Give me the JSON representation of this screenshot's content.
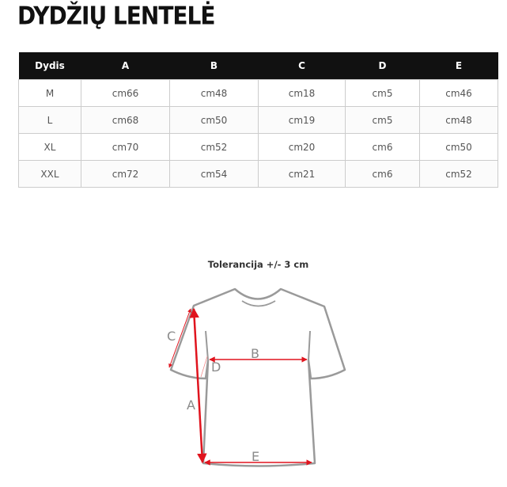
{
  "title": "DYDŽIŲ LENTELĖ",
  "table": {
    "headers": [
      "Dydis",
      "A",
      "B",
      "C",
      "D",
      "E"
    ],
    "rows": [
      [
        "M",
        "cm66",
        "cm48",
        "cm18",
        "cm5",
        "cm46"
      ],
      [
        "L",
        "cm68",
        "cm50",
        "cm19",
        "cm5",
        "cm48"
      ],
      [
        "XL",
        "cm70",
        "cm52",
        "cm20",
        "cm6",
        "cm50"
      ],
      [
        "XXL",
        "cm72",
        "cm54",
        "cm21",
        "cm6",
        "cm52"
      ]
    ]
  },
  "diagram": {
    "tolerance": "Tolerancija +/- 3 cm",
    "labels": {
      "a": "A",
      "b": "B",
      "c": "C",
      "d": "D",
      "e": "E"
    },
    "colors": {
      "outline": "#9a9a9a",
      "measure": "#e0141e"
    }
  }
}
